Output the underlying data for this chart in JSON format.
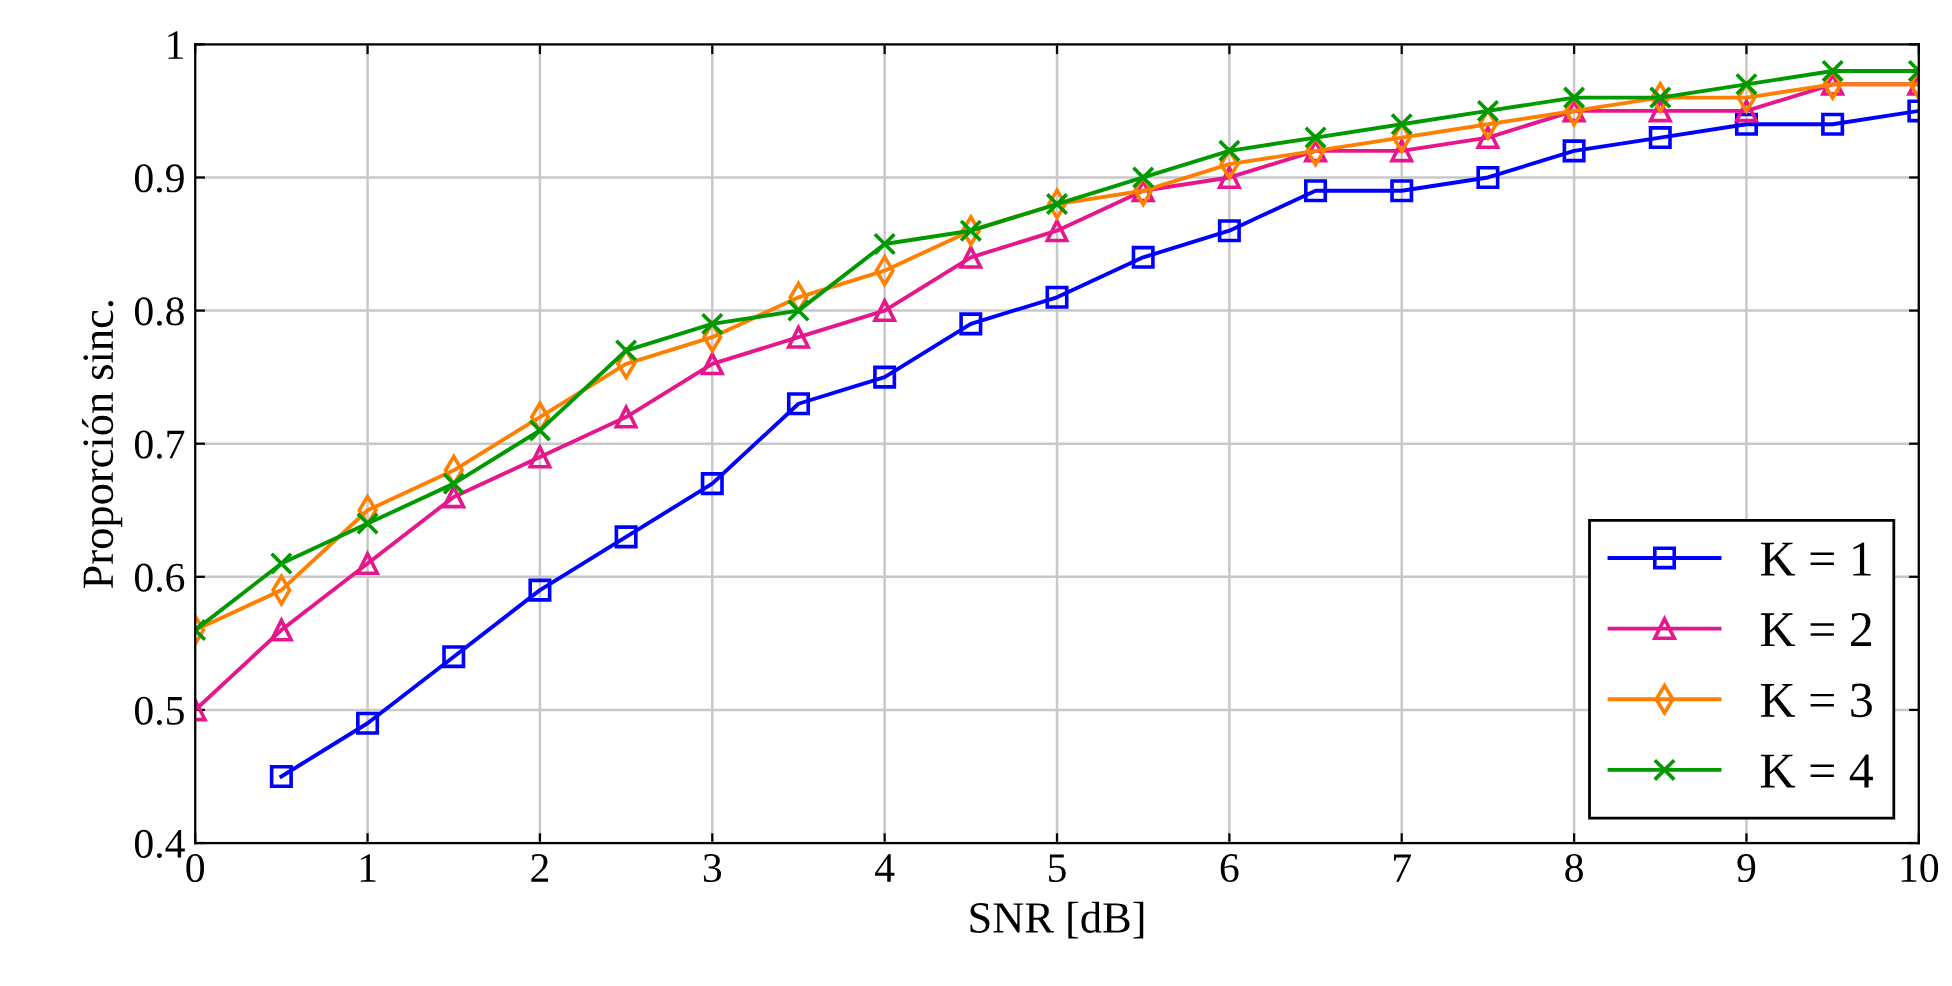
{
  "chart_data": {
    "type": "line",
    "xlabel": "SNR [dB]",
    "ylabel": "Proporción sinc.",
    "x": [
      0,
      0.5,
      1,
      1.5,
      2,
      2.5,
      3,
      3.5,
      4,
      4.5,
      5,
      5.5,
      6,
      6.5,
      7,
      7.5,
      8,
      8.5,
      9,
      9.5,
      10
    ],
    "series": [
      {
        "name": "K = 1",
        "color": "#0000ff",
        "marker": "square",
        "values": [
          null,
          0.45,
          0.49,
          0.54,
          0.59,
          0.63,
          0.67,
          0.73,
          0.75,
          0.79,
          0.81,
          0.84,
          0.86,
          0.89,
          0.89,
          0.9,
          0.92,
          0.93,
          0.94,
          0.94,
          0.95
        ]
      },
      {
        "name": "K = 2",
        "color": "#e6168c",
        "marker": "triangle",
        "values": [
          0.5,
          0.56,
          0.61,
          0.66,
          0.69,
          0.72,
          0.76,
          0.78,
          0.8,
          0.84,
          0.86,
          0.89,
          0.9,
          0.92,
          0.92,
          0.93,
          0.95,
          0.95,
          0.95,
          0.97,
          0.97
        ]
      },
      {
        "name": "K = 3",
        "color": "#ff8000",
        "marker": "diamond",
        "values": [
          0.56,
          0.59,
          0.65,
          0.68,
          0.72,
          0.76,
          0.78,
          0.81,
          0.83,
          0.86,
          0.88,
          0.89,
          0.91,
          0.92,
          0.93,
          0.94,
          0.95,
          0.96,
          0.96,
          0.97,
          0.97
        ]
      },
      {
        "name": "K = 4",
        "color": "#009900",
        "marker": "cross",
        "values": [
          0.56,
          0.61,
          0.64,
          0.67,
          0.71,
          0.77,
          0.79,
          0.8,
          0.85,
          0.86,
          0.88,
          0.9,
          0.92,
          0.93,
          0.94,
          0.95,
          0.96,
          0.96,
          0.97,
          0.98,
          0.98
        ]
      }
    ],
    "xlim": [
      0,
      10
    ],
    "xticks": [
      0,
      1,
      2,
      3,
      4,
      5,
      6,
      7,
      8,
      9,
      10
    ],
    "ylim": [
      0.4,
      1
    ],
    "yticks": [
      0.4,
      0.5,
      0.6,
      0.7,
      0.8,
      0.9,
      1
    ],
    "grid": true,
    "legend": "bottom right",
    "line_style": "solid"
  }
}
